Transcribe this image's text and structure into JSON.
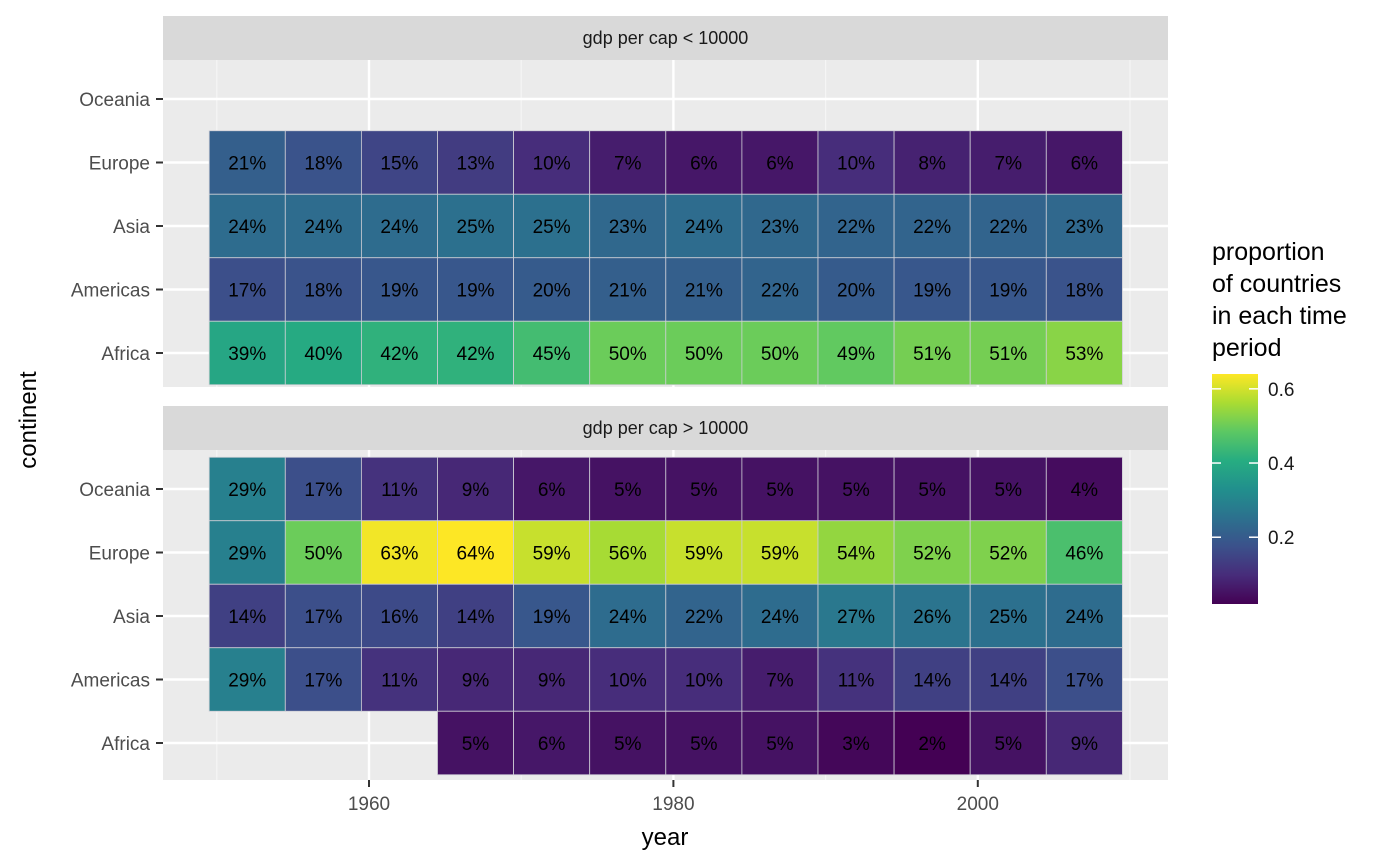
{
  "chart_data": {
    "type": "heatmap",
    "xlabel": "year",
    "ylabel": "continent",
    "x_ticks": [
      1960,
      1980,
      2000
    ],
    "years": [
      1952,
      1957,
      1962,
      1967,
      1972,
      1977,
      1982,
      1987,
      1992,
      1997,
      2002,
      2007
    ],
    "continents": [
      "Africa",
      "Americas",
      "Asia",
      "Europe",
      "Oceania"
    ],
    "colormap": "viridis",
    "legend": {
      "title_lines": [
        "proportion",
        "of countries",
        "in each time",
        "period"
      ],
      "ticks": [
        0.2,
        0.4,
        0.6
      ],
      "tick_labels": [
        "0.2",
        "0.4",
        "0.6"
      ],
      "range": [
        0.02,
        0.64
      ],
      "position": "right"
    },
    "panels": [
      {
        "title": "gdp per cap < 10000",
        "rows": {
          "Oceania": [
            null,
            null,
            null,
            null,
            null,
            null,
            null,
            null,
            null,
            null,
            null,
            null
          ],
          "Europe": [
            0.21,
            0.18,
            0.15,
            0.13,
            0.1,
            0.07,
            0.06,
            0.06,
            0.1,
            0.08,
            0.07,
            0.06
          ],
          "Asia": [
            0.24,
            0.24,
            0.24,
            0.25,
            0.25,
            0.23,
            0.24,
            0.23,
            0.22,
            0.22,
            0.22,
            0.23
          ],
          "Americas": [
            0.17,
            0.18,
            0.19,
            0.19,
            0.2,
            0.21,
            0.21,
            0.22,
            0.2,
            0.19,
            0.19,
            0.18
          ],
          "Africa": [
            0.39,
            0.4,
            0.42,
            0.42,
            0.45,
            0.5,
            0.5,
            0.5,
            0.49,
            0.51,
            0.51,
            0.53
          ]
        },
        "labels": {
          "Europe": [
            "21%",
            "18%",
            "15%",
            "13%",
            "10%",
            "7%",
            "6%",
            "6%",
            "10%",
            "8%",
            "7%",
            "6%"
          ],
          "Asia": [
            "24%",
            "24%",
            "24%",
            "25%",
            "25%",
            "23%",
            "24%",
            "23%",
            "22%",
            "22%",
            "22%",
            "23%"
          ],
          "Americas": [
            "17%",
            "18%",
            "19%",
            "19%",
            "20%",
            "21%",
            "21%",
            "22%",
            "20%",
            "19%",
            "19%",
            "18%"
          ],
          "Africa": [
            "39%",
            "40%",
            "42%",
            "42%",
            "45%",
            "50%",
            "50%",
            "50%",
            "49%",
            "51%",
            "51%",
            "53%"
          ]
        }
      },
      {
        "title": "gdp per cap > 10000",
        "rows": {
          "Oceania": [
            0.29,
            0.17,
            0.11,
            0.09,
            0.06,
            0.05,
            0.05,
            0.05,
            0.05,
            0.05,
            0.05,
            0.04
          ],
          "Europe": [
            0.29,
            0.5,
            0.63,
            0.64,
            0.59,
            0.56,
            0.59,
            0.59,
            0.54,
            0.52,
            0.52,
            0.46
          ],
          "Asia": [
            0.14,
            0.17,
            0.16,
            0.14,
            0.19,
            0.24,
            0.22,
            0.24,
            0.27,
            0.26,
            0.25,
            0.24
          ],
          "Americas": [
            0.29,
            0.17,
            0.11,
            0.09,
            0.09,
            0.1,
            0.1,
            0.07,
            0.11,
            0.14,
            0.14,
            0.17
          ],
          "Africa": [
            null,
            null,
            null,
            0.05,
            0.06,
            0.05,
            0.05,
            0.05,
            0.03,
            0.02,
            0.05,
            0.09
          ]
        },
        "labels": {
          "Oceania": [
            "29%",
            "17%",
            "11%",
            "9%",
            "6%",
            "5%",
            "5%",
            "5%",
            "5%",
            "5%",
            "5%",
            "4%"
          ],
          "Europe": [
            "29%",
            "50%",
            "63%",
            "64%",
            "59%",
            "56%",
            "59%",
            "59%",
            "54%",
            "52%",
            "52%",
            "46%"
          ],
          "Asia": [
            "14%",
            "17%",
            "16%",
            "14%",
            "19%",
            "24%",
            "22%",
            "24%",
            "27%",
            "26%",
            "25%",
            "24%"
          ],
          "Americas": [
            "29%",
            "17%",
            "11%",
            "9%",
            "9%",
            "10%",
            "10%",
            "7%",
            "11%",
            "14%",
            "14%",
            "17%"
          ],
          "Africa": [
            null,
            null,
            null,
            "5%",
            "6%",
            "5%",
            "5%",
            "5%",
            "3%",
            "2%",
            "5%",
            "9%"
          ]
        }
      }
    ]
  }
}
